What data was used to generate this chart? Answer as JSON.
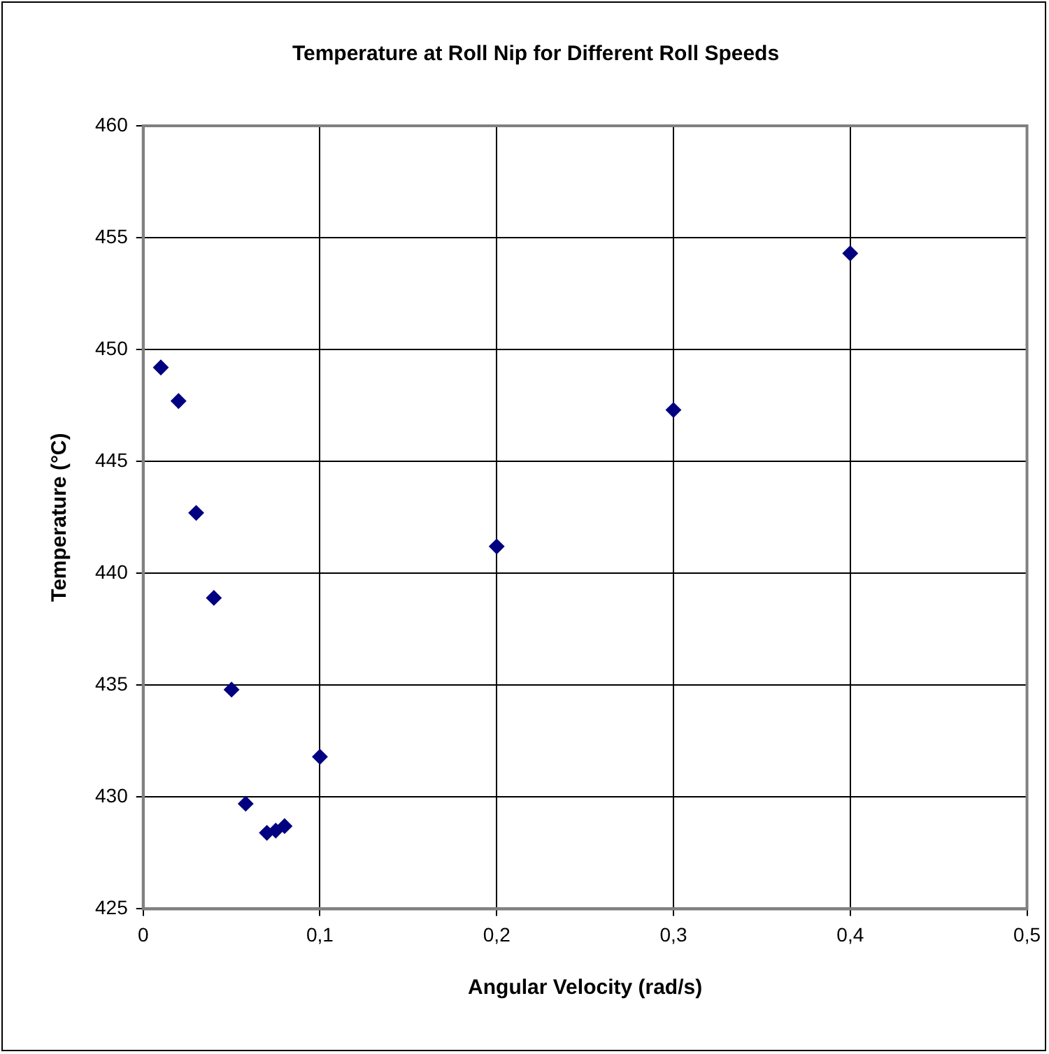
{
  "chart_data": {
    "type": "scatter",
    "title": "Temperature at Roll Nip for Different Roll Speeds",
    "xlabel": "Angular Velocity (rad/s)",
    "ylabel": "Temperature (°C)",
    "x": [
      0.01,
      0.02,
      0.03,
      0.04,
      0.05,
      0.058,
      0.07,
      0.075,
      0.08,
      0.1,
      0.2,
      0.3,
      0.4
    ],
    "series": [
      {
        "color": "#000080",
        "values": [
          449.2,
          447.7,
          442.7,
          438.9,
          434.8,
          429.7,
          428.4,
          428.5,
          428.7,
          431.8,
          441.2,
          447.3,
          454.3
        ]
      }
    ],
    "xlim": [
      0,
      0.5
    ],
    "xticks": [
      {
        "value": 0,
        "label": "0"
      },
      {
        "value": 0.1,
        "label": "0,1"
      },
      {
        "value": 0.2,
        "label": "0,2"
      },
      {
        "value": 0.3,
        "label": "0,3"
      },
      {
        "value": 0.4,
        "label": "0,4"
      },
      {
        "value": 0.5,
        "label": "0,5"
      }
    ],
    "ylim": [
      425,
      460
    ],
    "yticks": [
      425,
      430,
      435,
      440,
      445,
      450,
      455,
      460
    ],
    "grid": true,
    "legend": false,
    "marker": "diamond"
  }
}
